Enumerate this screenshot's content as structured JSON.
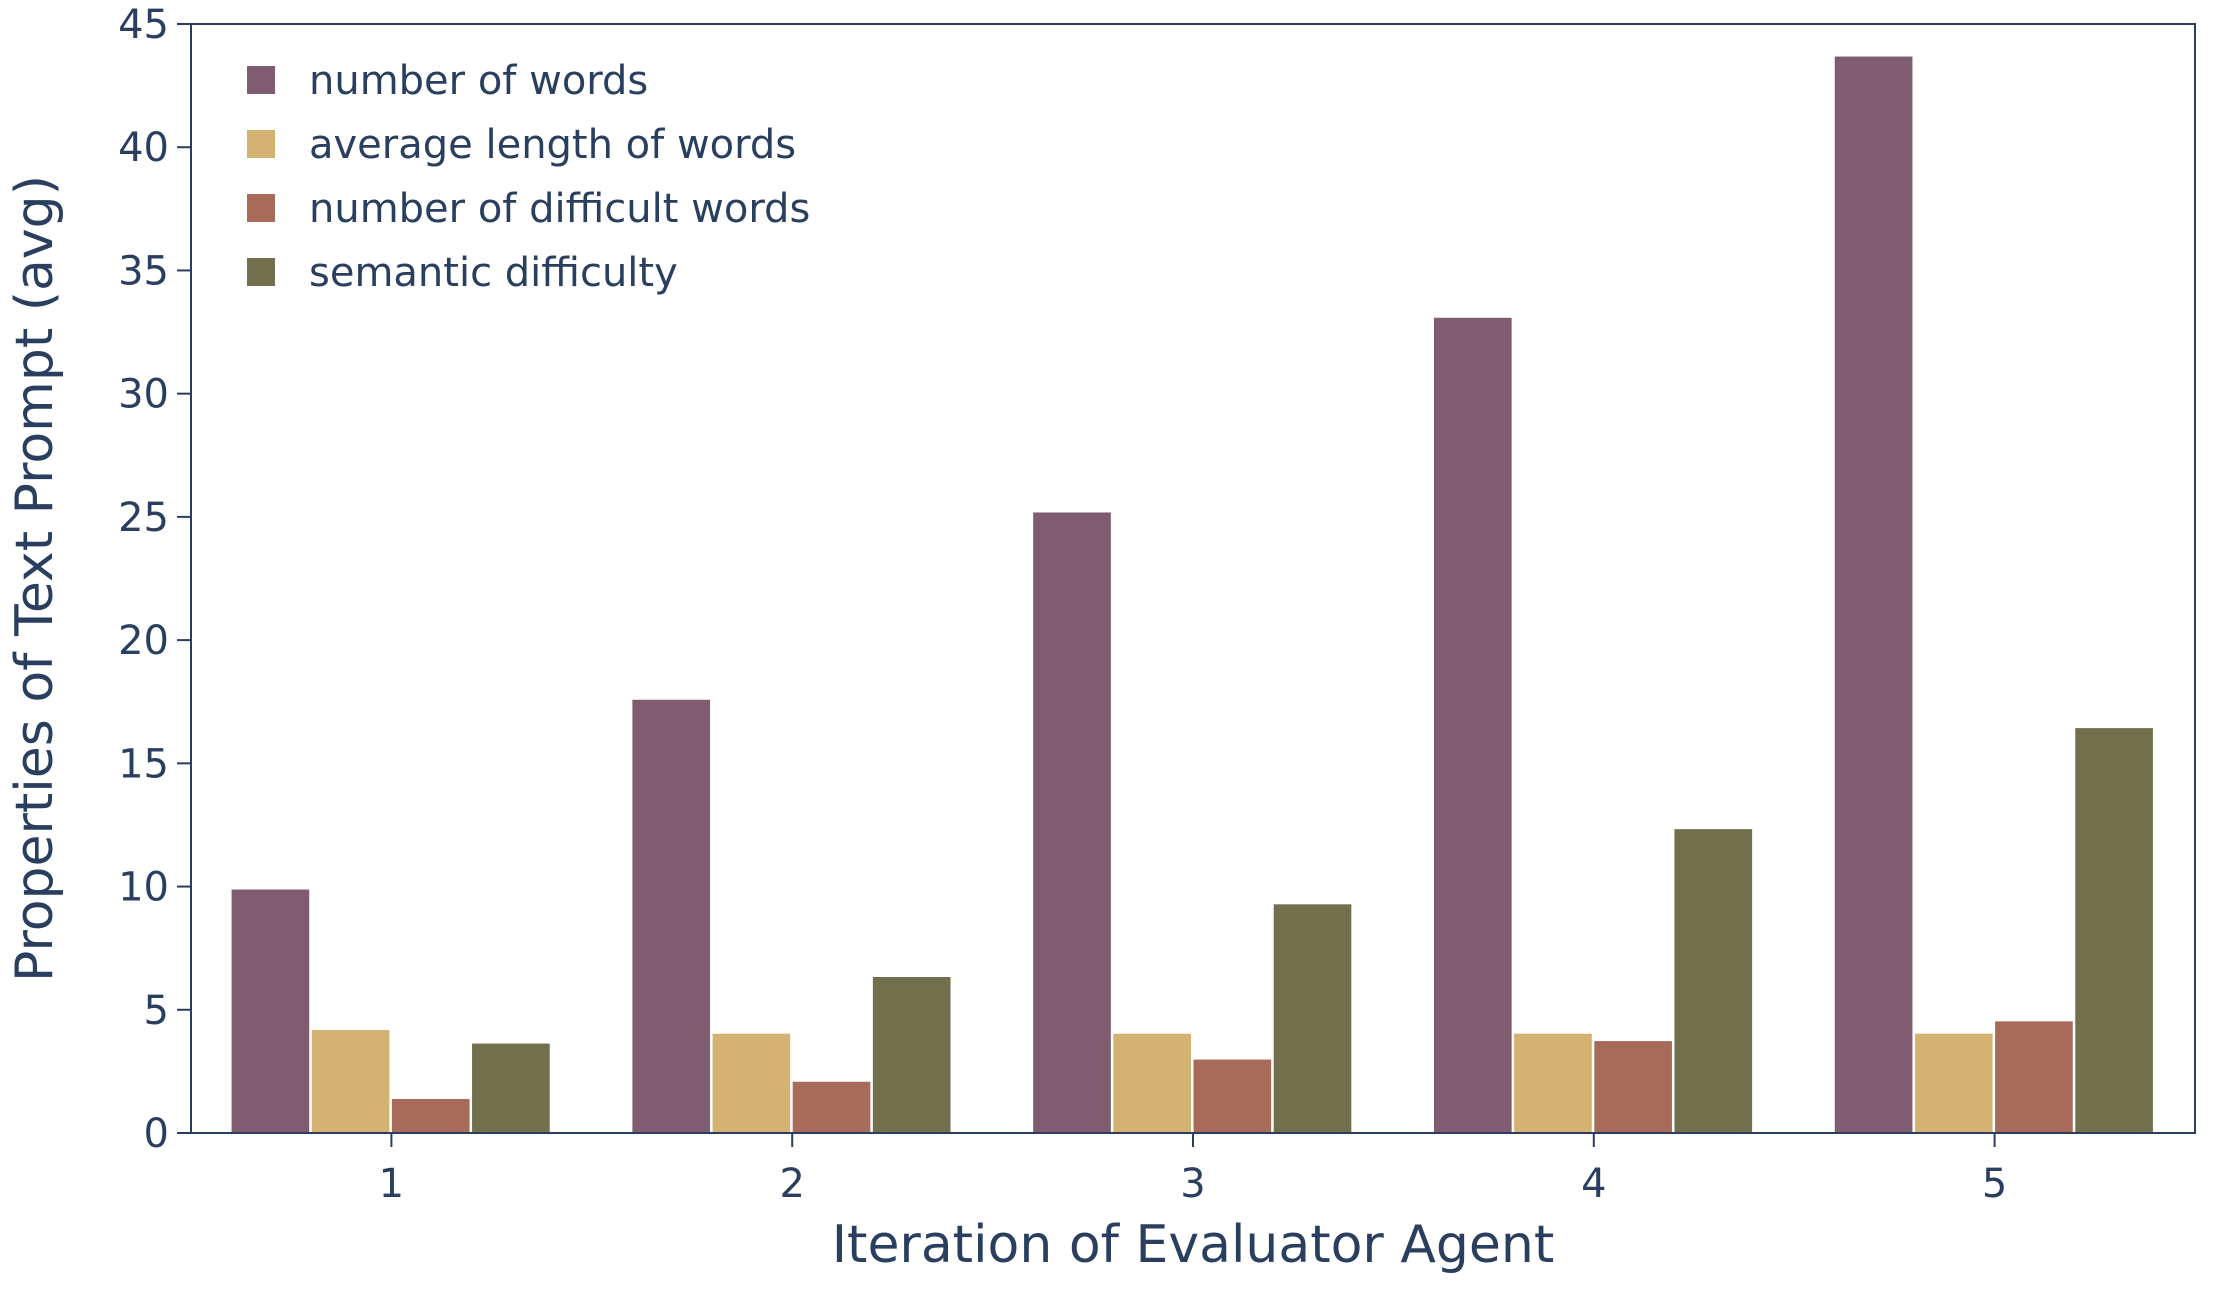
{
  "chart_data": {
    "type": "bar",
    "title": "",
    "xlabel": "Iteration of Evaluator Agent",
    "ylabel": "Properties of Text Prompt (avg)",
    "categories": [
      "1",
      "2",
      "3",
      "4",
      "5"
    ],
    "ylim": [
      0,
      45
    ],
    "yticks": [
      "0",
      "5",
      "10",
      "15",
      "20",
      "25",
      "30",
      "35",
      "40",
      "45"
    ],
    "legend_position": "top-left",
    "grid": false,
    "series": [
      {
        "name": "number of words",
        "color": "#7f5c6f",
        "values": [
          9.9,
          17.6,
          25.2,
          33.1,
          43.7
        ]
      },
      {
        "name": "average length of words",
        "color": "#d4b271",
        "values": [
          4.2,
          4.05,
          4.05,
          4.05,
          4.05
        ]
      },
      {
        "name": "number of difficult words",
        "color": "#a86b5a",
        "values": [
          1.4,
          2.1,
          3.0,
          3.75,
          4.55
        ]
      },
      {
        "name": "semantic difficulty",
        "color": "#726f4d",
        "values": [
          3.65,
          6.35,
          9.3,
          12.35,
          16.45
        ]
      }
    ]
  }
}
